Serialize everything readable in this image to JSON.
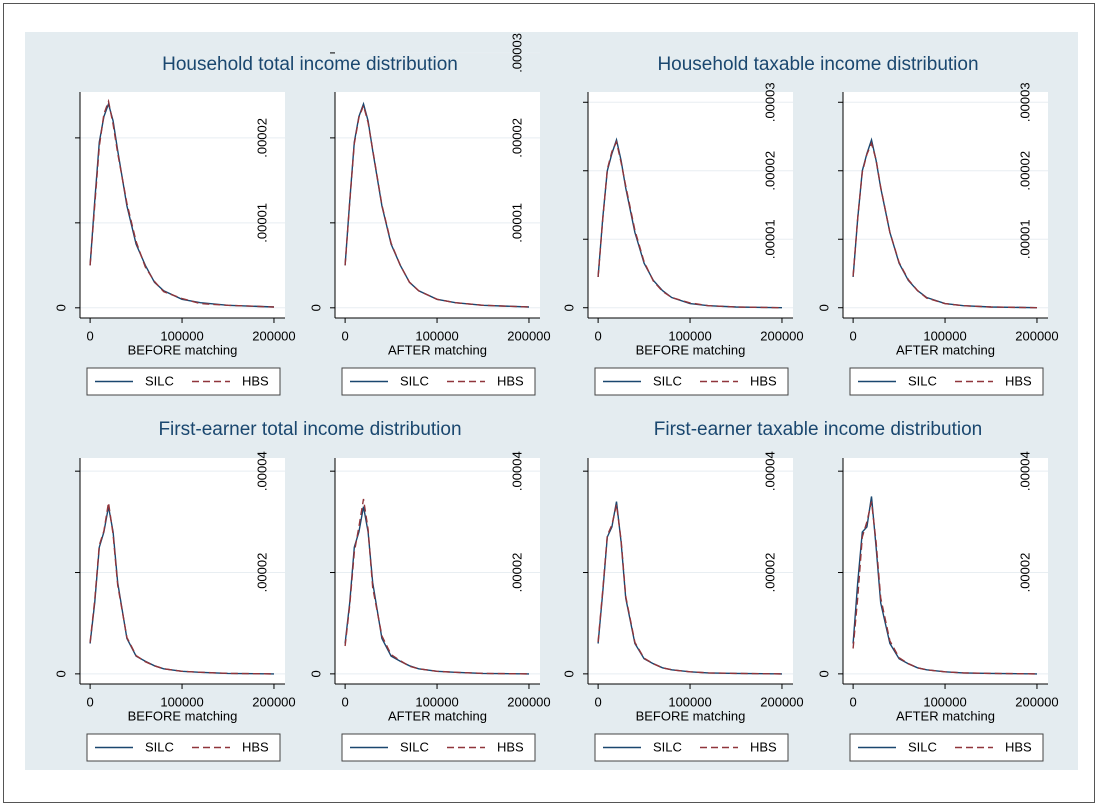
{
  "chart_data": [
    {
      "type": "line",
      "title": "Household total income distribution",
      "panels": [
        {
          "xlabel": "BEFORE matching",
          "xlim": [
            -11000,
            212000
          ],
          "ylim": [
            -1.2e-06,
            2.54e-05
          ],
          "xticks": [
            0,
            100000,
            200000
          ],
          "yticks": [
            0,
            {
              "value": 1e-05,
              "label": ".00001"
            },
            {
              "value": 2e-05,
              "label": ".00002"
            }
          ],
          "x": [
            0,
            5000,
            10000,
            15000,
            20000,
            25000,
            30000,
            40000,
            50000,
            60000,
            70000,
            80000,
            100000,
            120000,
            150000,
            200000
          ],
          "series": [
            {
              "name": "SILC",
              "color": "#1a476f",
              "values": [
                5e-06,
                1.25e-05,
                1.95e-05,
                2.25e-05,
                2.4e-05,
                2.2e-05,
                1.85e-05,
                1.2e-05,
                7.5e-06,
                5e-06,
                3e-06,
                2e-06,
                1e-06,
                6e-07,
                3e-07,
                1e-07
              ]
            },
            {
              "name": "HBS",
              "color": "#90353b",
              "values": [
                5e-06,
                1.2e-05,
                1.9e-05,
                2.28e-05,
                2.43e-05,
                2.16e-05,
                1.82e-05,
                1.23e-05,
                7.8e-06,
                4.8e-06,
                3.1e-06,
                1.9e-06,
                1.1e-06,
                5e-07,
                3e-07,
                1e-07
              ]
            }
          ]
        },
        {
          "xlabel": "AFTER matching",
          "xlim": [
            -11000,
            212000
          ],
          "ylim": [
            -1.2e-06,
            2.54e-05
          ],
          "xticks": [
            0,
            100000,
            200000
          ],
          "yticks": [
            0,
            {
              "value": 1e-05,
              "label": ".00001"
            },
            {
              "value": 2e-05,
              "label": ".00002"
            },
            {
              "value": 3e-05,
              "label": ".00003"
            }
          ],
          "x": [
            0,
            5000,
            10000,
            15000,
            20000,
            25000,
            30000,
            40000,
            50000,
            60000,
            70000,
            80000,
            100000,
            120000,
            150000,
            200000
          ],
          "series": [
            {
              "name": "SILC",
              "color": "#1a476f",
              "values": [
                5e-06,
                1.25e-05,
                1.95e-05,
                2.25e-05,
                2.4e-05,
                2.2e-05,
                1.85e-05,
                1.2e-05,
                7.5e-06,
                5e-06,
                3e-06,
                2e-06,
                1e-06,
                6e-07,
                3e-07,
                1e-07
              ]
            },
            {
              "name": "HBS",
              "color": "#90353b",
              "values": [
                5e-06,
                1.24e-05,
                1.93e-05,
                2.24e-05,
                2.38e-05,
                2.18e-05,
                1.86e-05,
                1.21e-05,
                7.6e-06,
                5e-06,
                3e-06,
                2e-06,
                1e-06,
                6e-07,
                3e-07,
                1e-07
              ]
            }
          ]
        }
      ]
    },
    {
      "type": "line",
      "title": "Household taxable income distribution",
      "panels": [
        {
          "xlabel": "BEFORE matching",
          "xlim": [
            -11000,
            212000
          ],
          "ylim": [
            -1.5e-06,
            3.15e-05
          ],
          "xticks": [
            0,
            100000,
            200000
          ],
          "yticks": [
            0,
            {
              "value": 1e-05,
              "label": ".00001"
            },
            {
              "value": 2e-05,
              "label": ".00002"
            },
            {
              "value": 3e-05,
              "label": ".00003"
            }
          ],
          "x": [
            0,
            5000,
            10000,
            15000,
            20000,
            25000,
            30000,
            40000,
            50000,
            60000,
            70000,
            80000,
            100000,
            120000,
            150000,
            200000
          ],
          "series": [
            {
              "name": "SILC",
              "color": "#1a476f",
              "values": [
                4.5e-06,
                1.3e-05,
                2e-05,
                2.25e-05,
                2.45e-05,
                2.15e-05,
                1.75e-05,
                1.1e-05,
                6.5e-06,
                4e-06,
                2.5e-06,
                1.5e-06,
                6e-07,
                3e-07,
                1e-07,
                0
              ]
            },
            {
              "name": "HBS",
              "color": "#90353b",
              "values": [
                4.5e-06,
                1.28e-05,
                2.02e-05,
                2.28e-05,
                2.42e-05,
                2.12e-05,
                1.78e-05,
                1.13e-05,
                6.7e-06,
                3.9e-06,
                2.4e-06,
                1.5e-06,
                7e-07,
                3e-07,
                1e-07,
                0
              ]
            }
          ]
        },
        {
          "xlabel": "AFTER matching",
          "xlim": [
            -11000,
            212000
          ],
          "ylim": [
            -1.5e-06,
            3.15e-05
          ],
          "xticks": [
            0,
            100000,
            200000
          ],
          "yticks": [
            0,
            {
              "value": 1e-05,
              "label": ".00001"
            },
            {
              "value": 2e-05,
              "label": ".00002"
            },
            {
              "value": 3e-05,
              "label": ".00003"
            }
          ],
          "x": [
            0,
            5000,
            10000,
            15000,
            20000,
            25000,
            30000,
            40000,
            50000,
            60000,
            70000,
            80000,
            100000,
            120000,
            150000,
            200000
          ],
          "series": [
            {
              "name": "SILC",
              "color": "#1a476f",
              "values": [
                4.5e-06,
                1.3e-05,
                2e-05,
                2.25e-05,
                2.45e-05,
                2.15e-05,
                1.75e-05,
                1.1e-05,
                6.5e-06,
                4e-06,
                2.5e-06,
                1.5e-06,
                6e-07,
                3e-07,
                1e-07,
                0
              ]
            },
            {
              "name": "HBS",
              "color": "#90353b",
              "values": [
                4.6e-06,
                1.31e-05,
                1.98e-05,
                2.24e-05,
                2.4e-05,
                2.16e-05,
                1.76e-05,
                1.1e-05,
                6.6e-06,
                4.1e-06,
                2.5e-06,
                1.4e-06,
                6e-07,
                3e-07,
                1e-07,
                0
              ]
            }
          ]
        }
      ]
    },
    {
      "type": "line",
      "title": "First-earner total income distribution",
      "panels": [
        {
          "xlabel": "BEFORE matching",
          "xlim": [
            -11000,
            212000
          ],
          "ylim": [
            -2e-06,
            4.26e-05
          ],
          "xticks": [
            0,
            100000,
            200000
          ],
          "yticks": [
            0,
            {
              "value": 2e-05,
              "label": ".00002"
            },
            {
              "value": 4e-05,
              "label": ".00004"
            }
          ],
          "x": [
            0,
            5000,
            10000,
            15000,
            20000,
            25000,
            30000,
            40000,
            50000,
            60000,
            70000,
            80000,
            100000,
            120000,
            150000,
            200000
          ],
          "series": [
            {
              "name": "SILC",
              "color": "#1a476f",
              "values": [
                6e-06,
                1.4e-05,
                2.5e-05,
                2.8e-05,
                3.3e-05,
                2.8e-05,
                1.8e-05,
                7e-06,
                3.5e-06,
                2.5e-06,
                1.6e-06,
                1e-06,
                5e-07,
                3e-07,
                1e-07,
                0
              ]
            },
            {
              "name": "HBS",
              "color": "#90353b",
              "values": [
                6.2e-06,
                1.45e-05,
                2.54e-05,
                2.82e-05,
                3.38e-05,
                2.75e-05,
                1.75e-05,
                7.2e-06,
                3.6e-06,
                2.4e-06,
                1.6e-06,
                1e-06,
                5e-07,
                3e-07,
                1e-07,
                0
              ]
            }
          ]
        },
        {
          "xlabel": "AFTER matching",
          "xlim": [
            -11000,
            212000
          ],
          "ylim": [
            -2e-06,
            4.26e-05
          ],
          "xticks": [
            0,
            100000,
            200000
          ],
          "yticks": [
            0,
            {
              "value": 2e-05,
              "label": ".00002"
            },
            {
              "value": 4e-05,
              "label": ".00004"
            }
          ],
          "x": [
            0,
            5000,
            10000,
            15000,
            20000,
            25000,
            30000,
            40000,
            50000,
            60000,
            70000,
            80000,
            100000,
            120000,
            150000,
            200000
          ],
          "series": [
            {
              "name": "SILC",
              "color": "#1a476f",
              "values": [
                6e-06,
                1.4e-05,
                2.5e-05,
                2.8e-05,
                3.3e-05,
                2.8e-05,
                1.8e-05,
                7e-06,
                3.5e-06,
                2.5e-06,
                1.6e-06,
                1e-06,
                5e-07,
                3e-07,
                1e-07,
                0
              ]
            },
            {
              "name": "HBS",
              "color": "#90353b",
              "values": [
                5.5e-06,
                1.35e-05,
                2.4e-05,
                2.9e-05,
                3.45e-05,
                2.85e-05,
                1.7e-05,
                7.5e-06,
                3.8e-06,
                2.6e-06,
                1.5e-06,
                1e-06,
                5e-07,
                3e-07,
                1e-07,
                0
              ]
            }
          ]
        }
      ]
    },
    {
      "type": "line",
      "title": "First-earner taxable income distribution",
      "panels": [
        {
          "xlabel": "BEFORE matching",
          "xlim": [
            -11000,
            212000
          ],
          "ylim": [
            -2e-06,
            4.26e-05
          ],
          "xticks": [
            0,
            100000,
            200000
          ],
          "yticks": [
            0,
            {
              "value": 2e-05,
              "label": ".00002"
            },
            {
              "value": 4e-05,
              "label": ".00004"
            }
          ],
          "x": [
            0,
            5000,
            10000,
            15000,
            20000,
            25000,
            30000,
            40000,
            50000,
            60000,
            70000,
            80000,
            100000,
            120000,
            150000,
            200000
          ],
          "series": [
            {
              "name": "SILC",
              "color": "#1a476f",
              "values": [
                6e-06,
                1.6e-05,
                2.7e-05,
                2.9e-05,
                3.4e-05,
                2.6e-05,
                1.5e-05,
                6e-06,
                3e-06,
                2e-06,
                1.2e-06,
                8e-07,
                4e-07,
                2e-07,
                1e-07,
                0
              ]
            },
            {
              "name": "HBS",
              "color": "#90353b",
              "values": [
                6.3e-06,
                1.64e-05,
                2.73e-05,
                2.94e-05,
                3.34e-05,
                2.64e-05,
                1.53e-05,
                6.2e-06,
                3.1e-06,
                2e-06,
                1.2e-06,
                8e-07,
                4e-07,
                2e-07,
                1e-07,
                0
              ]
            }
          ]
        },
        {
          "xlabel": "AFTER matching",
          "xlim": [
            -11000,
            212000
          ],
          "ylim": [
            -2e-06,
            4.26e-05
          ],
          "xticks": [
            0,
            100000,
            200000
          ],
          "yticks": [
            0,
            {
              "value": 2e-05,
              "label": ".00002"
            },
            {
              "value": 4e-05,
              "label": ".00004"
            }
          ],
          "x": [
            0,
            5000,
            10000,
            15000,
            20000,
            25000,
            30000,
            40000,
            50000,
            60000,
            70000,
            80000,
            100000,
            120000,
            150000,
            200000
          ],
          "series": [
            {
              "name": "SILC",
              "color": "#1a476f",
              "values": [
                6e-06,
                1.8e-05,
                2.8e-05,
                2.9e-05,
                3.5e-05,
                2.5e-05,
                1.4e-05,
                6e-06,
                3e-06,
                2e-06,
                1.2e-06,
                8e-07,
                4e-07,
                2e-07,
                1e-07,
                0
              ]
            },
            {
              "name": "HBS",
              "color": "#90353b",
              "values": [
                5e-06,
                1.5e-05,
                2.7e-05,
                3e-05,
                3.4e-05,
                2.6e-05,
                1.5e-05,
                6.5e-06,
                3.2e-06,
                2e-06,
                1.2e-06,
                8e-07,
                4e-07,
                2e-07,
                1e-07,
                0
              ]
            }
          ]
        }
      ]
    }
  ]
}
